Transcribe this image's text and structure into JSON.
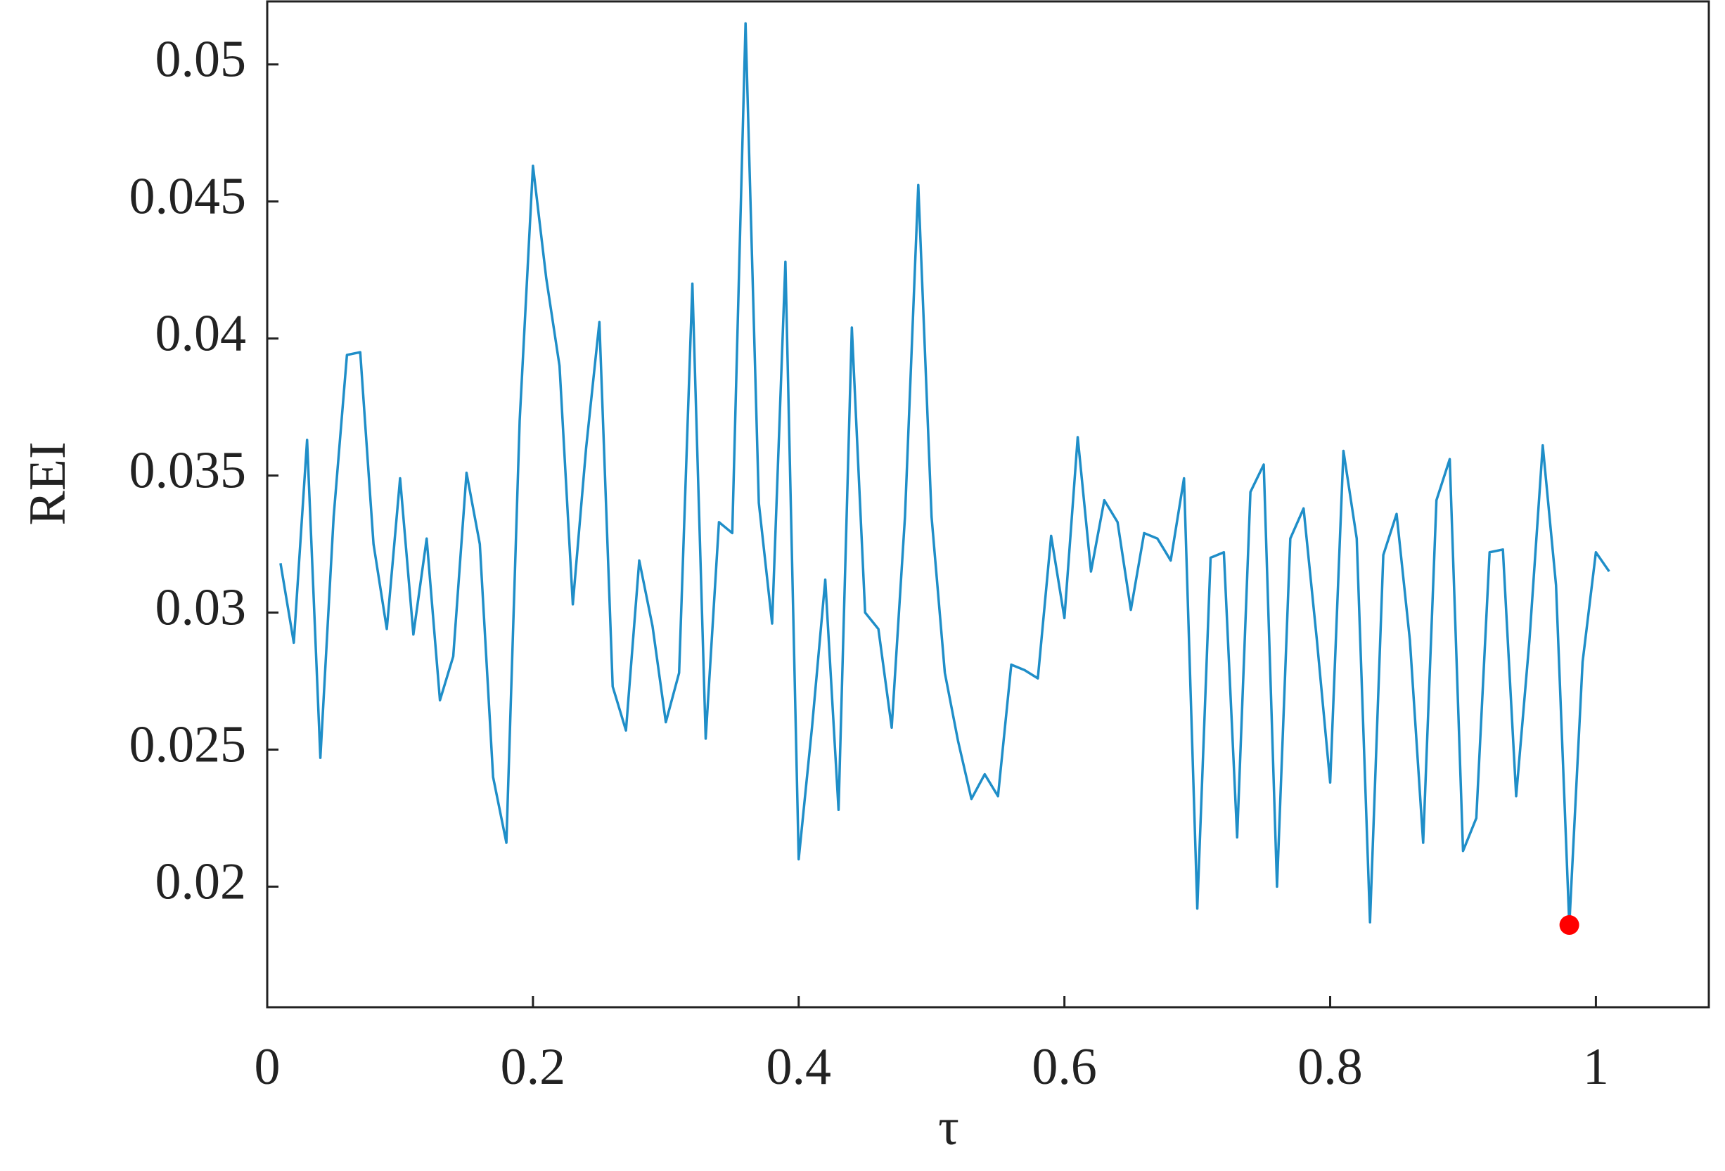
{
  "chart_data": {
    "type": "line",
    "x_label": "τ",
    "y_label": "REI",
    "x": [
      0.01,
      0.02,
      0.03,
      0.04,
      0.05,
      0.06,
      0.07,
      0.08,
      0.09,
      0.1,
      0.11,
      0.12,
      0.13,
      0.14,
      0.15,
      0.16,
      0.17,
      0.18,
      0.19,
      0.2,
      0.21,
      0.22,
      0.23,
      0.24,
      0.25,
      0.26,
      0.27,
      0.28,
      0.29,
      0.3,
      0.31,
      0.32,
      0.33,
      0.34,
      0.35,
      0.36,
      0.37,
      0.38,
      0.39,
      0.4,
      0.41,
      0.42,
      0.43,
      0.44,
      0.45,
      0.46,
      0.47,
      0.48,
      0.49,
      0.5,
      0.51,
      0.52,
      0.53,
      0.54,
      0.55,
      0.56,
      0.57,
      0.58,
      0.59,
      0.6,
      0.61,
      0.62,
      0.63,
      0.64,
      0.65,
      0.66,
      0.67,
      0.68,
      0.69,
      0.7,
      0.71,
      0.72,
      0.73,
      0.74,
      0.75,
      0.76,
      0.77,
      0.78,
      0.79,
      0.8,
      0.81,
      0.82,
      0.83,
      0.84,
      0.85,
      0.86,
      0.87,
      0.88,
      0.89,
      0.9,
      0.91,
      0.92,
      0.93,
      0.94,
      0.95,
      0.96,
      0.97,
      0.98,
      0.99,
      1.0,
      1.01
    ],
    "series": [
      {
        "color": "#1f8ec8",
        "values": [
          0.0318,
          0.0289,
          0.0363,
          0.0247,
          0.0335,
          0.0394,
          0.0395,
          0.0325,
          0.0294,
          0.0349,
          0.0292,
          0.0327,
          0.0268,
          0.0284,
          0.0351,
          0.0325,
          0.024,
          0.0216,
          0.037,
          0.0463,
          0.0422,
          0.039,
          0.0303,
          0.036,
          0.0406,
          0.0273,
          0.0257,
          0.0319,
          0.0295,
          0.026,
          0.0278,
          0.042,
          0.0254,
          0.0333,
          0.0329,
          0.0515,
          0.034,
          0.0296,
          0.0428,
          0.021,
          0.0258,
          0.0312,
          0.0228,
          0.0404,
          0.03,
          0.0294,
          0.0258,
          0.0335,
          0.0456,
          0.0335,
          0.0278,
          0.0253,
          0.0232,
          0.0241,
          0.0233,
          0.0281,
          0.0279,
          0.0276,
          0.0328,
          0.0298,
          0.0364,
          0.0315,
          0.0341,
          0.0333,
          0.0301,
          0.0329,
          0.0327,
          0.0319,
          0.0349,
          0.0192,
          0.032,
          0.0322,
          0.0218,
          0.0344,
          0.0354,
          0.02,
          0.0327,
          0.0338,
          0.029,
          0.0238,
          0.0359,
          0.0327,
          0.0187,
          0.0321,
          0.0336,
          0.029,
          0.0216,
          0.0341,
          0.0356,
          0.0213,
          0.0225,
          0.0322,
          0.0323,
          0.0233,
          0.029,
          0.0361,
          0.031,
          0.0186,
          0.0282,
          0.0322,
          0.0315
        ]
      }
    ],
    "marker": {
      "x": 0.98,
      "y": 0.0186,
      "color": "#ff0000"
    },
    "xlim": [
      0,
      1.085
    ],
    "xticks": [
      0,
      0.2,
      0.4,
      0.6,
      0.8,
      1
    ],
    "ylim": [
      0.0156,
      0.0523
    ],
    "yticks": [
      0.02,
      0.025,
      0.03,
      0.035,
      0.04,
      0.045,
      0.05
    ]
  }
}
